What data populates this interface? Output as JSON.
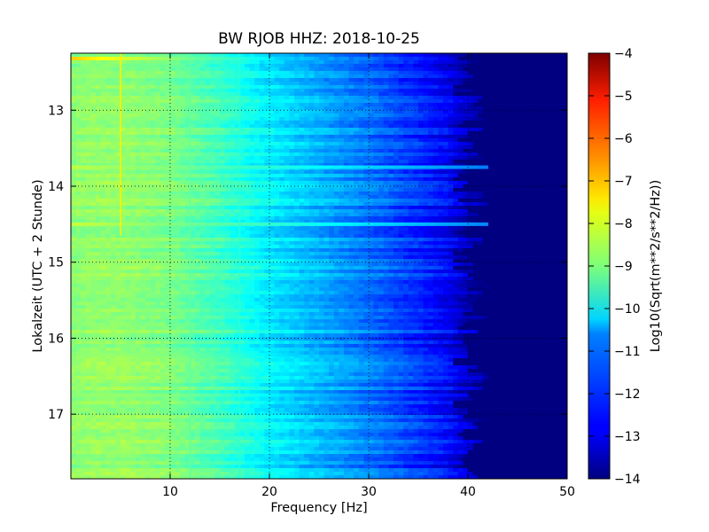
{
  "chart_data": {
    "type": "heatmap",
    "title": "BW RJOB HHZ: 2018-10-25",
    "xlabel": "Frequency [Hz]",
    "ylabel": "Lokalzeit (UTC + 2 Stunde)",
    "colorbar_label": "Log10(Sqrt(m**2/s**2/Hz))",
    "xlim": [
      0,
      50
    ],
    "ylim_time": [
      12.25,
      17.85
    ],
    "y_inverted": true,
    "x_ticks": [
      {
        "value": 10,
        "label": "10"
      },
      {
        "value": 20,
        "label": "20"
      },
      {
        "value": 30,
        "label": "30"
      },
      {
        "value": 40,
        "label": "40"
      },
      {
        "value": 50,
        "label": "50"
      }
    ],
    "y_ticks": [
      {
        "value": 13,
        "label": "13"
      },
      {
        "value": 14,
        "label": "14"
      },
      {
        "value": 15,
        "label": "15"
      },
      {
        "value": 16,
        "label": "16"
      },
      {
        "value": 17,
        "label": "17"
      }
    ],
    "colorbar_range": [
      -14,
      -4
    ],
    "colorbar_ticks": [
      {
        "value": -4,
        "label": "−4"
      },
      {
        "value": -5,
        "label": "−5"
      },
      {
        "value": -6,
        "label": "−6"
      },
      {
        "value": -7,
        "label": "−7"
      },
      {
        "value": -8,
        "label": "−8"
      },
      {
        "value": -9,
        "label": "−9"
      },
      {
        "value": -10,
        "label": "−10"
      },
      {
        "value": -11,
        "label": "−11"
      },
      {
        "value": -12,
        "label": "−12"
      },
      {
        "value": -13,
        "label": "−13"
      },
      {
        "value": -14,
        "label": "−14"
      }
    ],
    "colormap": "jet",
    "grid": true,
    "spectral_profile": {
      "frequency_hz": [
        0,
        2,
        5,
        10,
        15,
        20,
        25,
        30,
        35,
        38,
        40,
        42,
        45,
        50
      ],
      "log10_amplitude": [
        -8.9,
        -8.8,
        -8.8,
        -9.0,
        -9.6,
        -10.4,
        -11.0,
        -11.6,
        -12.3,
        -12.8,
        -13.4,
        -13.9,
        -14.0,
        -14.0
      ]
    },
    "features": [
      {
        "type": "horizontal_band",
        "time": 12.32,
        "fmax": 20,
        "log10_amplitude": -7.3
      },
      {
        "type": "horizontal_band",
        "time": 13.75,
        "fmax": 42,
        "log10_amplitude": -8.4
      },
      {
        "type": "horizontal_band",
        "time": 14.5,
        "fmax": 42,
        "log10_amplitude": -8.3
      },
      {
        "type": "horizontal_band",
        "time": 16.75,
        "fmax": 40,
        "log10_amplitude": -9.6
      },
      {
        "type": "horizontal_band",
        "time": 16.22,
        "fmax": 23,
        "log10_amplitude": -9.2
      },
      {
        "type": "vertical_line",
        "frequency": 5,
        "tmin": 12.25,
        "tmax": 14.65,
        "log10_amplitude": -7.6
      },
      {
        "type": "vertical_line",
        "frequency": 12,
        "tmin": 12.25,
        "tmax": 17.85,
        "log10_amplitude": -9.3
      },
      {
        "type": "vertical_line",
        "frequency": 17,
        "tmin": 12.25,
        "tmax": 17.85,
        "log10_amplitude": -9.8
      }
    ],
    "background_color": "#00007f"
  }
}
